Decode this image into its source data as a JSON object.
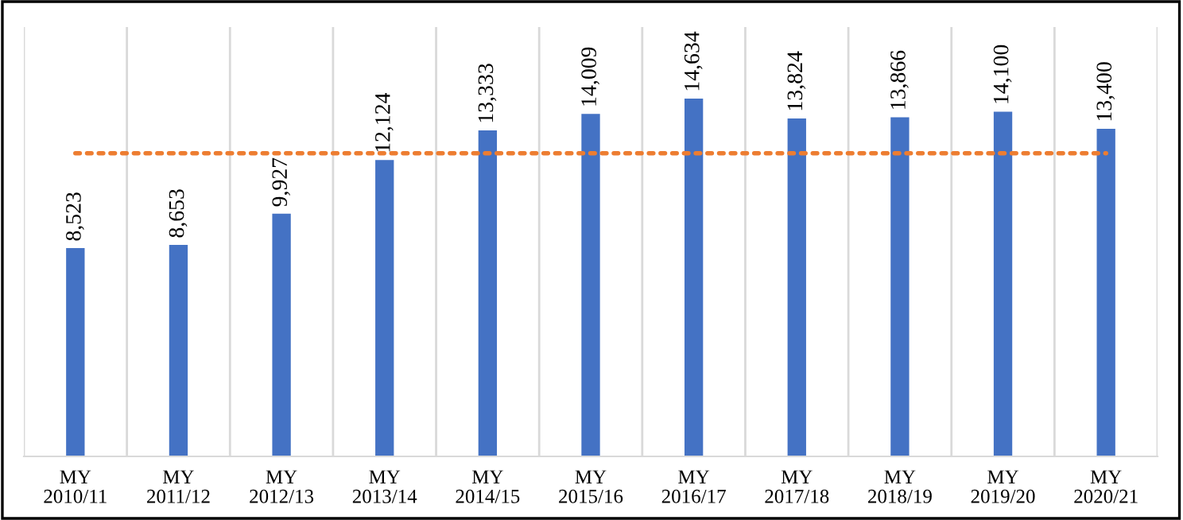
{
  "chart_data": {
    "type": "bar",
    "categories": [
      "MY\n2010/11",
      "MY\n2011/12",
      "MY\n2012/13",
      "MY\n2013/14",
      "MY\n2014/15",
      "MY\n2015/16",
      "MY\n2016/17",
      "MY\n2017/18",
      "MY\n2018/19",
      "MY\n2019/20",
      "MY\n2020/21"
    ],
    "values": [
      8523,
      8653,
      9927,
      12124,
      13333,
      14009,
      14634,
      13824,
      13866,
      14100,
      13400
    ],
    "value_labels": [
      "8,523",
      "8,653",
      "9,927",
      "12,124",
      "13,333",
      "14,009",
      "14,634",
      "13,824",
      "13,866",
      "14,100",
      "13,400"
    ],
    "color": "#4472c4",
    "ref_lines": [
      {
        "axis": "y",
        "value": 12400,
        "color": "#ed7d31",
        "line_style": "dotted"
      }
    ],
    "grid": "x",
    "tick_labels": "x"
  }
}
